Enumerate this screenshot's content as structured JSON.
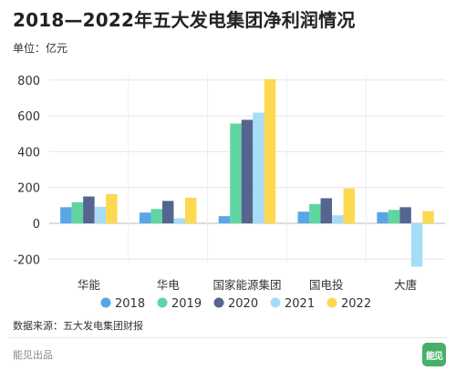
{
  "header": {
    "title": "2018—2022年五大发电集团净利润情况",
    "unit": "单位：亿元"
  },
  "footer": {
    "source": "数据来源：五大发电集团财报",
    "credit": "能见出品",
    "logo_text": "能见"
  },
  "chart_data": {
    "type": "bar",
    "title": "2018—2022年五大发电集团净利润情况",
    "xlabel": "",
    "ylabel": "",
    "unit": "单位：亿元",
    "categories": [
      "华能",
      "华电",
      "国家能源集团",
      "国电投",
      "大唐"
    ],
    "ylim": [
      -250,
      810
    ],
    "yticks": [
      -200,
      0,
      200,
      400,
      600,
      800
    ],
    "grid": true,
    "legend_position": "bottom",
    "series": [
      {
        "name": "2018",
        "color": "#5aa5e6",
        "values": [
          90,
          60,
          40,
          65,
          62
        ]
      },
      {
        "name": "2019",
        "color": "#5fd6a1",
        "values": [
          118,
          80,
          557,
          108,
          75
        ]
      },
      {
        "name": "2020",
        "color": "#55658f",
        "values": [
          150,
          125,
          578,
          140,
          90
        ]
      },
      {
        "name": "2021",
        "color": "#a7dcf7",
        "values": [
          92,
          28,
          618,
          45,
          -242
        ]
      },
      {
        "name": "2022",
        "color": "#fcd94f",
        "values": [
          163,
          143,
          805,
          195,
          68
        ]
      }
    ]
  }
}
